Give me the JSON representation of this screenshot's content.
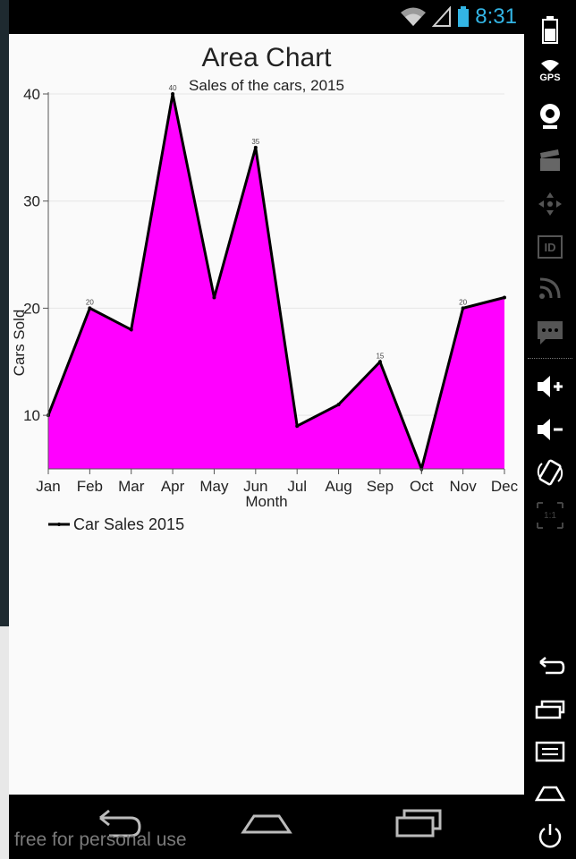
{
  "status_bar": {
    "time": "8:31"
  },
  "emulator_panel": {
    "gps_label": "GPS",
    "id_label": "ID",
    "ratio_label": "1:1"
  },
  "watermark": "free for personal use",
  "colors": {
    "area_fill": "#ff00ff",
    "line": "#000000",
    "clock": "#33b5e5",
    "screen_bg": "#fafafa",
    "grid": "#e6e6e6"
  },
  "chart_data": {
    "type": "area",
    "title": "Area Chart",
    "subtitle": "Sales of the cars, 2015",
    "xlabel": "Month",
    "ylabel": "Cars Sold",
    "categories": [
      "Jan",
      "Feb",
      "Mar",
      "Apr",
      "May",
      "Jun",
      "Jul",
      "Aug",
      "Sep",
      "Oct",
      "Nov",
      "Dec"
    ],
    "series": [
      {
        "name": "Car Sales 2015",
        "values": [
          10,
          20,
          18,
          40,
          21,
          35,
          9,
          11,
          15,
          0,
          20,
          21
        ]
      }
    ],
    "data_labels": [
      "",
      "20",
      "",
      "40",
      "",
      "35",
      "",
      "",
      "15",
      "",
      "20",
      ""
    ],
    "ylim": [
      5,
      40
    ],
    "yticks": [
      10,
      20,
      30,
      40
    ],
    "legend_position": "bottom-left"
  }
}
